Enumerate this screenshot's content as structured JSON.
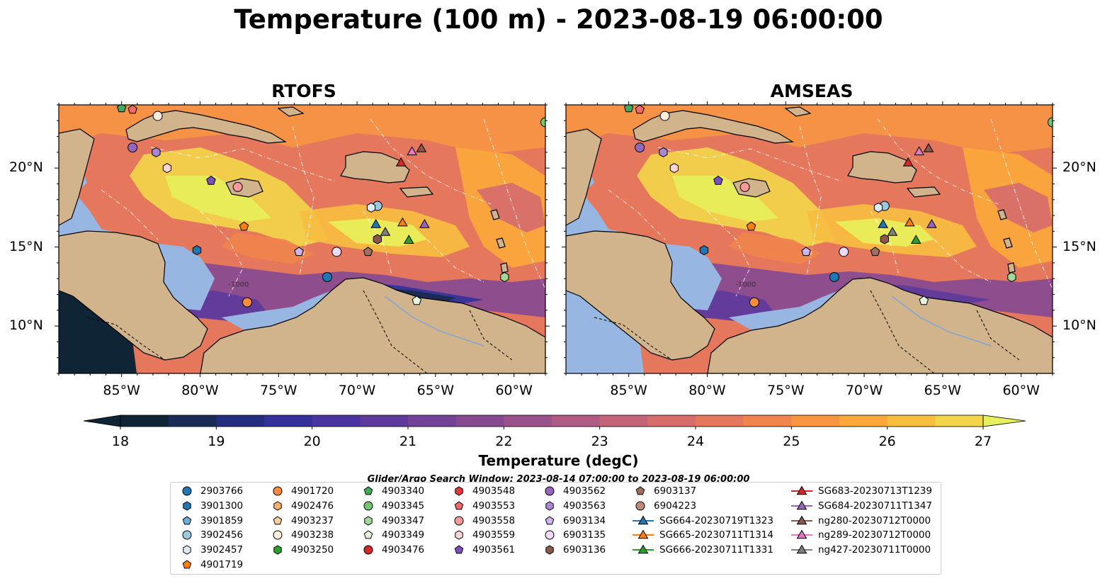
{
  "title": "Temperature (100 m) - 2023-08-19 06:00:00",
  "panels": [
    {
      "title": "RTOFS"
    },
    {
      "title": "AMSEAS"
    }
  ],
  "map_extent": {
    "lon": [
      -89,
      -58
    ],
    "lat": [
      7,
      24
    ]
  },
  "lat_ticks": [
    {
      "value": 20,
      "label": "20°N"
    },
    {
      "value": 15,
      "label": "15°N"
    },
    {
      "value": 10,
      "label": "10°N"
    }
  ],
  "lon_ticks": [
    {
      "value": -85,
      "label": "85°W"
    },
    {
      "value": -80,
      "label": "80°W"
    },
    {
      "value": -75,
      "label": "75°W"
    },
    {
      "value": -70,
      "label": "70°W"
    },
    {
      "value": -65,
      "label": "65°W"
    },
    {
      "value": -60,
      "label": "60°W"
    }
  ],
  "colors": {
    "land": "#d2b48c",
    "ocean": "#97b6e1",
    "marker_edge": "#000000"
  },
  "colorbar": {
    "label": "Temperature (degC)",
    "min": 18,
    "max": 27,
    "step": 0.5,
    "extend": "both",
    "ticks": [
      "18",
      "19",
      "20",
      "21",
      "22",
      "23",
      "24",
      "25",
      "26",
      "27"
    ],
    "colors": [
      "#0f2535",
      "#1a2b55",
      "#242d7e",
      "#34329a",
      "#4a35a0",
      "#5f3a9c",
      "#734196",
      "#874a90",
      "#9b528a",
      "#b05b83",
      "#c4647a",
      "#d66d6b",
      "#e5775c",
      "#f0844d",
      "#f79543",
      "#fba83b",
      "#f7be40",
      "#f2d54a",
      "#e8ef5a"
    ]
  },
  "search_window": "Glider/Argo Search Window: 2023-08-14 07:00:00 to 2023-08-19 06:00:00",
  "legend": {
    "columns": [
      [
        {
          "label": "2903766",
          "marker": "circle",
          "color": "#1f77b4"
        },
        {
          "label": "3901300",
          "marker": "hexagon",
          "color": "#1f77b4"
        },
        {
          "label": "3901859",
          "marker": "pentagon",
          "color": "#6baed6"
        },
        {
          "label": "3902456",
          "marker": "circle",
          "color": "#9ecae1"
        },
        {
          "label": "3902457",
          "marker": "hexagon",
          "color": "#deebf7"
        },
        {
          "label": "4901719",
          "marker": "pentagon",
          "color": "#ff7f0e"
        }
      ],
      [
        {
          "label": "4901720",
          "marker": "circle",
          "color": "#fd8d3c"
        },
        {
          "label": "4902476",
          "marker": "hexagon",
          "color": "#fdae6b"
        },
        {
          "label": "4903237",
          "marker": "pentagon",
          "color": "#fdd0a2"
        },
        {
          "label": "4903238",
          "marker": "circle",
          "color": "#feeddc"
        },
        {
          "label": "4903250",
          "marker": "hexagon",
          "color": "#2ca02c"
        }
      ],
      [
        {
          "label": "4903340",
          "marker": "pentagon",
          "color": "#41ab5d"
        },
        {
          "label": "4903345",
          "marker": "circle",
          "color": "#74c476"
        },
        {
          "label": "4903347",
          "marker": "hexagon",
          "color": "#a1d99b"
        },
        {
          "label": "4903349",
          "marker": "pentagon",
          "color": "#e5f5e0"
        },
        {
          "label": "4903476",
          "marker": "circle",
          "color": "#d62728"
        }
      ],
      [
        {
          "label": "4903548",
          "marker": "hexagon",
          "color": "#e3383b"
        },
        {
          "label": "4903553",
          "marker": "pentagon",
          "color": "#f16a6a"
        },
        {
          "label": "4903558",
          "marker": "circle",
          "color": "#fa9a9a"
        },
        {
          "label": "4903559",
          "marker": "hexagon",
          "color": "#fcd5d5"
        },
        {
          "label": "4903561",
          "marker": "pentagon",
          "color": "#7b4fbf"
        }
      ],
      [
        {
          "label": "4903562",
          "marker": "circle",
          "color": "#9467bd"
        },
        {
          "label": "4903563",
          "marker": "hexagon",
          "color": "#a989d5"
        },
        {
          "label": "6903134",
          "marker": "pentagon",
          "color": "#cbb6ee"
        },
        {
          "label": "6903135",
          "marker": "circle",
          "color": "#eddcf7"
        },
        {
          "label": "6903136",
          "marker": "hexagon",
          "color": "#8c564b"
        }
      ],
      [
        {
          "label": "6903137",
          "marker": "pentagon",
          "color": "#a0705f"
        },
        {
          "label": "6904223",
          "marker": "circle",
          "color": "#c08a78"
        },
        {
          "label": "SG664-20230719T1323",
          "marker": "triangle-line",
          "color": "#1f77b4"
        },
        {
          "label": "SG665-20230711T1314",
          "marker": "triangle-line",
          "color": "#ff7f0e"
        },
        {
          "label": "SG666-20230711T1331",
          "marker": "triangle-line",
          "color": "#2ca02c"
        }
      ],
      [
        {
          "label": "SG683-20230713T1239",
          "marker": "triangle-line",
          "color": "#d62728"
        },
        {
          "label": "SG684-20230711T1347",
          "marker": "triangle-line",
          "color": "#9467bd"
        },
        {
          "label": "ng280-20230712T0000",
          "marker": "triangle-line",
          "color": "#8c564b"
        },
        {
          "label": "ng289-20230712T0000",
          "marker": "triangle-line",
          "color": "#e377c2"
        },
        {
          "label": "ng427-20230711T0000",
          "marker": "triangle-line",
          "color": "#7f7f7f"
        }
      ]
    ]
  },
  "observations": [
    {
      "id": "4903340",
      "lon": -85.0,
      "lat": 23.8,
      "marker": "pentagon",
      "color": "#41ab5d"
    },
    {
      "id": "4903553",
      "lon": -84.3,
      "lat": 23.7,
      "marker": "pentagon",
      "color": "#f16a6a"
    },
    {
      "id": "4903238",
      "lon": -82.7,
      "lat": 23.3,
      "marker": "circle",
      "color": "#feeddc"
    },
    {
      "id": "4903345",
      "lon": -58.0,
      "lat": 22.9,
      "marker": "circle",
      "color": "#74c476"
    },
    {
      "id": "4903562",
      "lon": -84.3,
      "lat": 21.3,
      "marker": "circle",
      "color": "#9467bd"
    },
    {
      "id": "4903563",
      "lon": -82.8,
      "lat": 21.0,
      "marker": "hexagon",
      "color": "#a989d5"
    },
    {
      "id": "4903559",
      "lon": -82.1,
      "lat": 20.0,
      "marker": "hexagon",
      "color": "#fcd5d5"
    },
    {
      "id": "4903561",
      "lon": -79.3,
      "lat": 19.2,
      "marker": "pentagon",
      "color": "#7b4fbf"
    },
    {
      "id": "4903558",
      "lon": -77.6,
      "lat": 18.8,
      "marker": "circle",
      "color": "#fa9a9a"
    },
    {
      "id": "4901719",
      "lon": -77.2,
      "lat": 16.3,
      "marker": "pentagon",
      "color": "#ff7f0e"
    },
    {
      "id": "3902456",
      "lon": -68.7,
      "lat": 17.6,
      "marker": "circle",
      "color": "#9ecae1"
    },
    {
      "id": "3902457",
      "lon": -69.1,
      "lat": 17.5,
      "marker": "hexagon",
      "color": "#deebf7"
    },
    {
      "id": "3901300",
      "lon": -80.2,
      "lat": 14.8,
      "marker": "hexagon",
      "color": "#1f77b4"
    },
    {
      "id": "6903134",
      "lon": -73.7,
      "lat": 14.7,
      "marker": "pentagon",
      "color": "#cbb6ee"
    },
    {
      "id": "6903135",
      "lon": -71.3,
      "lat": 14.7,
      "marker": "circle",
      "color": "#eddcf7"
    },
    {
      "id": "6903137",
      "lon": -69.3,
      "lat": 14.7,
      "marker": "pentagon",
      "color": "#a0705f"
    },
    {
      "id": "6903136",
      "lon": -68.7,
      "lat": 15.5,
      "marker": "hexagon",
      "color": "#8c564b"
    },
    {
      "id": "2903766",
      "lon": -71.9,
      "lat": 13.1,
      "marker": "circle",
      "color": "#1f77b4"
    },
    {
      "id": "4903347",
      "lon": -60.6,
      "lat": 13.1,
      "marker": "hexagon",
      "color": "#a1d99b"
    },
    {
      "id": "4901720",
      "lon": -77.0,
      "lat": 11.5,
      "marker": "circle",
      "color": "#fd8d3c"
    },
    {
      "id": "4903349",
      "lon": -66.2,
      "lat": 11.6,
      "marker": "pentagon",
      "color": "#e5f5e0"
    },
    {
      "id": "SG683-20230713T1239",
      "lon": -67.2,
      "lat": 20.3,
      "marker": "triangle",
      "color": "#d62728"
    },
    {
      "id": "ng289-20230712T0000",
      "lon": -66.5,
      "lat": 21.0,
      "marker": "triangle",
      "color": "#e377c2"
    },
    {
      "id": "ng280-20230712T0000",
      "lon": -65.9,
      "lat": 21.2,
      "marker": "triangle",
      "color": "#8c564b"
    },
    {
      "id": "SG664-20230719T1323",
      "lon": -68.8,
      "lat": 16.4,
      "marker": "triangle",
      "color": "#1f77b4"
    },
    {
      "id": "ng427-20230711T0000",
      "lon": -68.2,
      "lat": 15.9,
      "marker": "triangle",
      "color": "#7f7f7f"
    },
    {
      "id": "SG665-20230711T1314",
      "lon": -67.1,
      "lat": 16.5,
      "marker": "triangle",
      "color": "#ff7f0e"
    },
    {
      "id": "SG684-20230711T1347",
      "lon": -65.7,
      "lat": 16.4,
      "marker": "triangle",
      "color": "#9467bd"
    },
    {
      "id": "SG666-20230711T1331",
      "lon": -66.7,
      "lat": 15.4,
      "marker": "triangle",
      "color": "#2ca02c"
    }
  ],
  "isobath_label": "-1000"
}
